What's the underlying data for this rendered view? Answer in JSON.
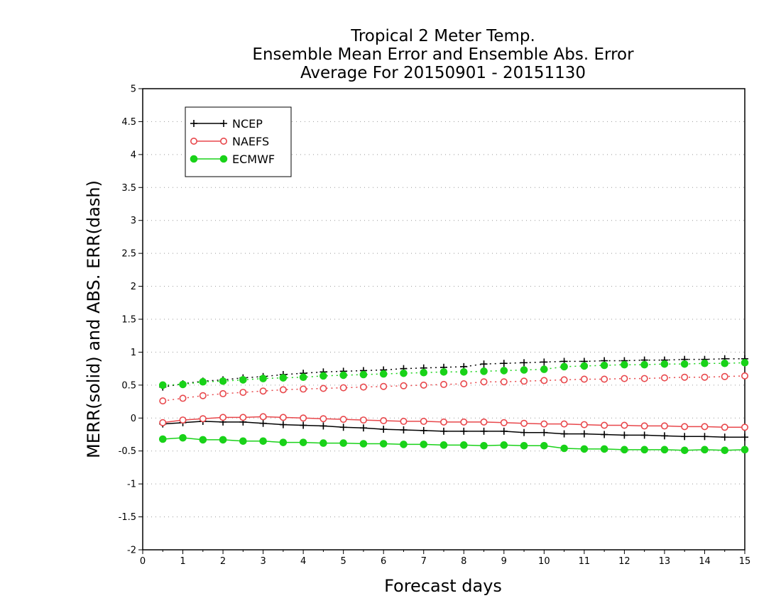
{
  "chart_data": {
    "type": "line",
    "title": [
      "Tropical 2 Meter Temp.",
      "Ensemble Mean Error and Ensemble Abs. Error",
      "Average For 20150901 - 20151130"
    ],
    "xlabel": "Forecast days",
    "ylabel": "MERR(solid) and ABS. ERR(dash)",
    "xlim": [
      0,
      15
    ],
    "ylim": [
      -2,
      5
    ],
    "xticks": [
      "0",
      "1",
      "2",
      "3",
      "4",
      "5",
      "6",
      "7",
      "8",
      "9",
      "10",
      "11",
      "12",
      "13",
      "14",
      "15"
    ],
    "yticks": [
      "-2",
      "-1.5",
      "-1",
      "-0.5",
      "0",
      "0.5",
      "1",
      "1.5",
      "2",
      "2.5",
      "3",
      "3.5",
      "4",
      "4.5",
      "5"
    ],
    "grid": "horizontal-dotted",
    "legend_position": "top-left",
    "x": [
      0.5,
      1,
      1.5,
      2,
      2.5,
      3,
      3.5,
      4,
      4.5,
      5,
      5.5,
      6,
      6.5,
      7,
      7.5,
      8,
      8.5,
      9,
      9.5,
      10,
      10.5,
      11,
      11.5,
      12,
      12.5,
      13,
      13.5,
      14,
      14.5,
      15
    ],
    "series": [
      {
        "name": "NCEP",
        "color": "#000000",
        "marker": "plus",
        "merr": [
          -0.09,
          -0.07,
          -0.05,
          -0.06,
          -0.06,
          -0.08,
          -0.1,
          -0.11,
          -0.12,
          -0.14,
          -0.15,
          -0.17,
          -0.18,
          -0.19,
          -0.2,
          -0.2,
          -0.2,
          -0.2,
          -0.22,
          -0.22,
          -0.24,
          -0.24,
          -0.25,
          -0.26,
          -0.26,
          -0.27,
          -0.28,
          -0.28,
          -0.29,
          -0.29
        ],
        "abs_err": [
          0.47,
          0.52,
          0.56,
          0.58,
          0.61,
          0.63,
          0.66,
          0.68,
          0.7,
          0.71,
          0.72,
          0.73,
          0.75,
          0.76,
          0.77,
          0.78,
          0.82,
          0.83,
          0.84,
          0.85,
          0.86,
          0.86,
          0.87,
          0.87,
          0.88,
          0.88,
          0.89,
          0.89,
          0.9,
          0.9
        ]
      },
      {
        "name": "NAEFS",
        "color": "#e8474b",
        "marker": "open-circle",
        "merr": [
          -0.07,
          -0.03,
          -0.01,
          0.01,
          0.01,
          0.02,
          0.01,
          0.0,
          -0.01,
          -0.02,
          -0.03,
          -0.04,
          -0.05,
          -0.05,
          -0.06,
          -0.06,
          -0.06,
          -0.07,
          -0.08,
          -0.09,
          -0.09,
          -0.1,
          -0.11,
          -0.11,
          -0.12,
          -0.12,
          -0.13,
          -0.13,
          -0.14,
          -0.14
        ],
        "abs_err": [
          0.26,
          0.3,
          0.34,
          0.37,
          0.39,
          0.41,
          0.43,
          0.44,
          0.45,
          0.46,
          0.47,
          0.48,
          0.49,
          0.5,
          0.51,
          0.52,
          0.55,
          0.55,
          0.56,
          0.57,
          0.58,
          0.59,
          0.59,
          0.6,
          0.6,
          0.61,
          0.62,
          0.62,
          0.63,
          0.64
        ]
      },
      {
        "name": "ECMWF",
        "color": "#19d219",
        "marker": "filled-circle",
        "merr": [
          -0.32,
          -0.3,
          -0.33,
          -0.33,
          -0.35,
          -0.35,
          -0.37,
          -0.37,
          -0.38,
          -0.38,
          -0.39,
          -0.39,
          -0.4,
          -0.4,
          -0.41,
          -0.41,
          -0.42,
          -0.41,
          -0.42,
          -0.42,
          -0.46,
          -0.47,
          -0.47,
          -0.48,
          -0.48,
          -0.48,
          -0.49,
          -0.48,
          -0.49,
          -0.48
        ],
        "abs_err": [
          0.5,
          0.51,
          0.55,
          0.56,
          0.58,
          0.6,
          0.61,
          0.62,
          0.64,
          0.65,
          0.66,
          0.67,
          0.68,
          0.69,
          0.7,
          0.7,
          0.71,
          0.72,
          0.73,
          0.74,
          0.78,
          0.79,
          0.8,
          0.81,
          0.81,
          0.82,
          0.82,
          0.83,
          0.83,
          0.84
        ]
      }
    ]
  }
}
